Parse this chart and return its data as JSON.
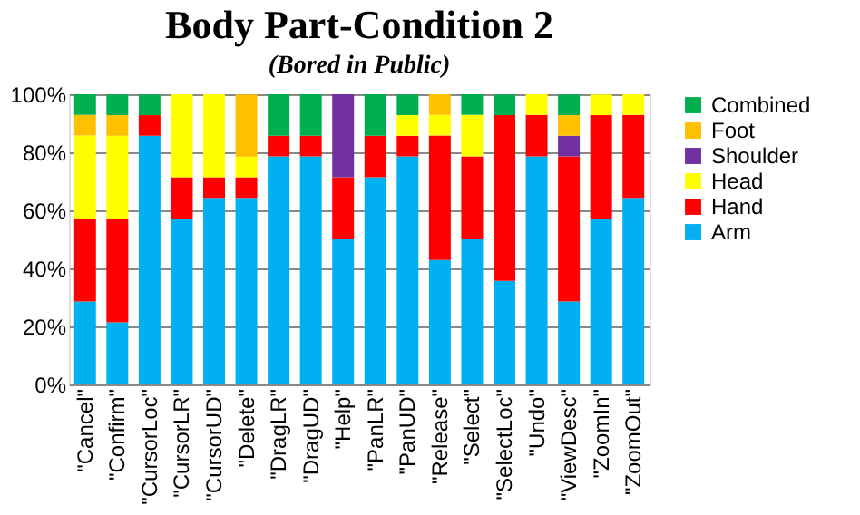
{
  "chart_data": {
    "type": "bar",
    "title": "Body Part-Condition 2",
    "subtitle": "(Bored in Public)",
    "categories": [
      "\"Cancel\"",
      "\"Confirm\"",
      "\"CursorLoc\"",
      "\"CursorLR\"",
      "\"CursorUD\"",
      "\"Delete\"",
      "\"DragLR\"",
      "\"DragUD\"",
      "\"Help\"",
      "\"PanLR\"",
      "\"PanUD\"",
      "\"Release\"",
      "\"Select\"",
      "\"SelectLoc\"",
      "\"Undo\"",
      "\"ViewDesc\"",
      "\"ZoomIn\"",
      "\"ZoomOut\""
    ],
    "stacked": true,
    "series": [
      {
        "name": "Arm",
        "color": "#00b0f0",
        "values": [
          28.6,
          21.4,
          85.7,
          57.1,
          64.3,
          64.3,
          78.6,
          78.6,
          50,
          71.4,
          78.6,
          42.9,
          50,
          35.7,
          78.6,
          28.6,
          57.1,
          64.3
        ]
      },
      {
        "name": "Hand",
        "color": "#ff0000",
        "values": [
          28.6,
          35.7,
          7.1,
          14.3,
          7.1,
          7.1,
          7.1,
          7.1,
          21.4,
          14.3,
          7.1,
          42.9,
          28.6,
          57.1,
          14.3,
          50,
          35.7,
          28.6
        ]
      },
      {
        "name": "Head",
        "color": "#ffff00",
        "values": [
          28.6,
          28.6,
          0,
          28.6,
          28.6,
          7.1,
          0,
          0,
          0,
          0,
          7.1,
          7.1,
          14.3,
          0,
          7.1,
          0,
          7.1,
          7.1
        ]
      },
      {
        "name": "Shoulder",
        "color": "#7030a0",
        "values": [
          0,
          0,
          0,
          0,
          0,
          0,
          0,
          0,
          28.6,
          0,
          0,
          0,
          0,
          0,
          0,
          7.1,
          0,
          0
        ]
      },
      {
        "name": "Foot",
        "color": "#ffc000",
        "values": [
          7.1,
          7.1,
          0,
          0,
          0,
          21.4,
          0,
          0,
          0,
          0,
          0,
          7.1,
          0,
          0,
          0,
          7.1,
          0,
          0
        ]
      },
      {
        "name": "Combined",
        "color": "#00b050",
        "values": [
          7.1,
          7.1,
          7.1,
          0,
          0,
          0,
          14.3,
          14.3,
          0,
          14.3,
          7.1,
          0,
          7.1,
          7.1,
          0,
          7.1,
          0,
          0
        ]
      }
    ],
    "ylim": [
      0,
      100
    ],
    "yticks": [
      {
        "value": 0,
        "label": "0%"
      },
      {
        "value": 20,
        "label": "20%"
      },
      {
        "value": 40,
        "label": "40%"
      },
      {
        "value": 60,
        "label": "60%"
      },
      {
        "value": 80,
        "label": "80%"
      },
      {
        "value": 100,
        "label": "100%"
      }
    ],
    "grid": "y",
    "legend": "right"
  }
}
